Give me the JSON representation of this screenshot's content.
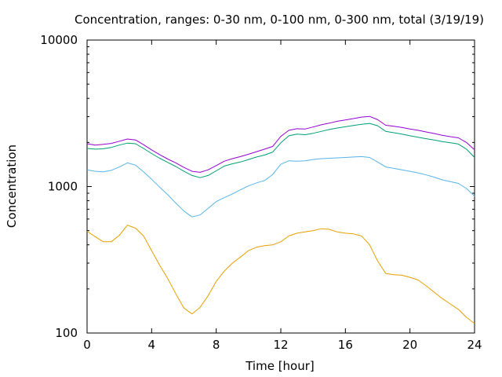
{
  "chart_data": {
    "type": "line",
    "title": "Concentration, ranges: 0-30 nm, 0-100 nm, 0-300 nm, total (3/19/19)",
    "xlabel": "Time [hour]",
    "ylabel": "Concentration",
    "xlim": [
      0,
      24
    ],
    "ylim": [
      100,
      10000
    ],
    "yscale": "log",
    "x_ticks": [
      0,
      4,
      8,
      12,
      16,
      20,
      24
    ],
    "x_tick_labels": [
      "0",
      "4",
      "8",
      "12",
      "16",
      "20",
      "24"
    ],
    "y_ticks": [
      100,
      1000,
      10000
    ],
    "y_tick_labels": [
      "100",
      "1000",
      "10000"
    ],
    "grid": false,
    "legend": "none",
    "x": [
      0,
      0.5,
      1,
      1.5,
      2,
      2.5,
      3,
      3.5,
      4,
      4.5,
      5,
      5.5,
      6,
      6.5,
      7,
      7.5,
      8,
      8.5,
      9,
      9.5,
      10,
      10.5,
      11,
      11.5,
      12,
      12.5,
      13,
      13.5,
      14,
      14.5,
      15,
      15.5,
      16,
      16.5,
      17,
      17.5,
      18,
      18.5,
      19,
      19.5,
      20,
      20.5,
      21,
      21.5,
      22,
      22.5,
      23,
      23.5,
      24
    ],
    "series": [
      {
        "color": "#e69f00",
        "values": [
          495,
          455,
          420,
          420,
          465,
          545,
          520,
          460,
          365,
          290,
          235,
          185,
          148,
          135,
          150,
          180,
          225,
          265,
          300,
          330,
          365,
          385,
          395,
          400,
          420,
          460,
          480,
          490,
          500,
          515,
          510,
          490,
          480,
          475,
          460,
          400,
          310,
          255,
          250,
          248,
          240,
          230,
          210,
          190,
          172,
          158,
          145,
          128,
          116
        ]
      },
      {
        "color": "#56b4e9",
        "values": [
          1300,
          1270,
          1260,
          1290,
          1360,
          1450,
          1400,
          1260,
          1120,
          990,
          880,
          770,
          680,
          620,
          640,
          710,
          790,
          840,
          890,
          950,
          1010,
          1060,
          1100,
          1210,
          1420,
          1500,
          1490,
          1500,
          1530,
          1550,
          1560,
          1570,
          1580,
          1590,
          1600,
          1580,
          1470,
          1360,
          1330,
          1300,
          1270,
          1240,
          1200,
          1160,
          1110,
          1080,
          1050,
          970,
          860
        ]
      },
      {
        "color": "#009e73",
        "values": [
          1820,
          1800,
          1810,
          1850,
          1920,
          1980,
          1960,
          1820,
          1680,
          1560,
          1460,
          1370,
          1270,
          1190,
          1150,
          1190,
          1280,
          1380,
          1430,
          1470,
          1530,
          1590,
          1640,
          1720,
          1990,
          2220,
          2280,
          2260,
          2310,
          2380,
          2450,
          2510,
          2560,
          2610,
          2660,
          2700,
          2600,
          2380,
          2330,
          2280,
          2220,
          2170,
          2120,
          2080,
          2030,
          1990,
          1950,
          1800,
          1580
        ]
      },
      {
        "color": "#9400d3",
        "values": [
          1960,
          1920,
          1940,
          1970,
          2040,
          2110,
          2080,
          1930,
          1780,
          1650,
          1540,
          1450,
          1350,
          1270,
          1250,
          1300,
          1390,
          1490,
          1550,
          1600,
          1660,
          1730,
          1800,
          1880,
          2200,
          2420,
          2480,
          2470,
          2550,
          2640,
          2710,
          2790,
          2850,
          2910,
          2980,
          3010,
          2860,
          2620,
          2580,
          2530,
          2470,
          2420,
          2360,
          2300,
          2240,
          2190,
          2150,
          2000,
          1780
        ]
      }
    ]
  }
}
